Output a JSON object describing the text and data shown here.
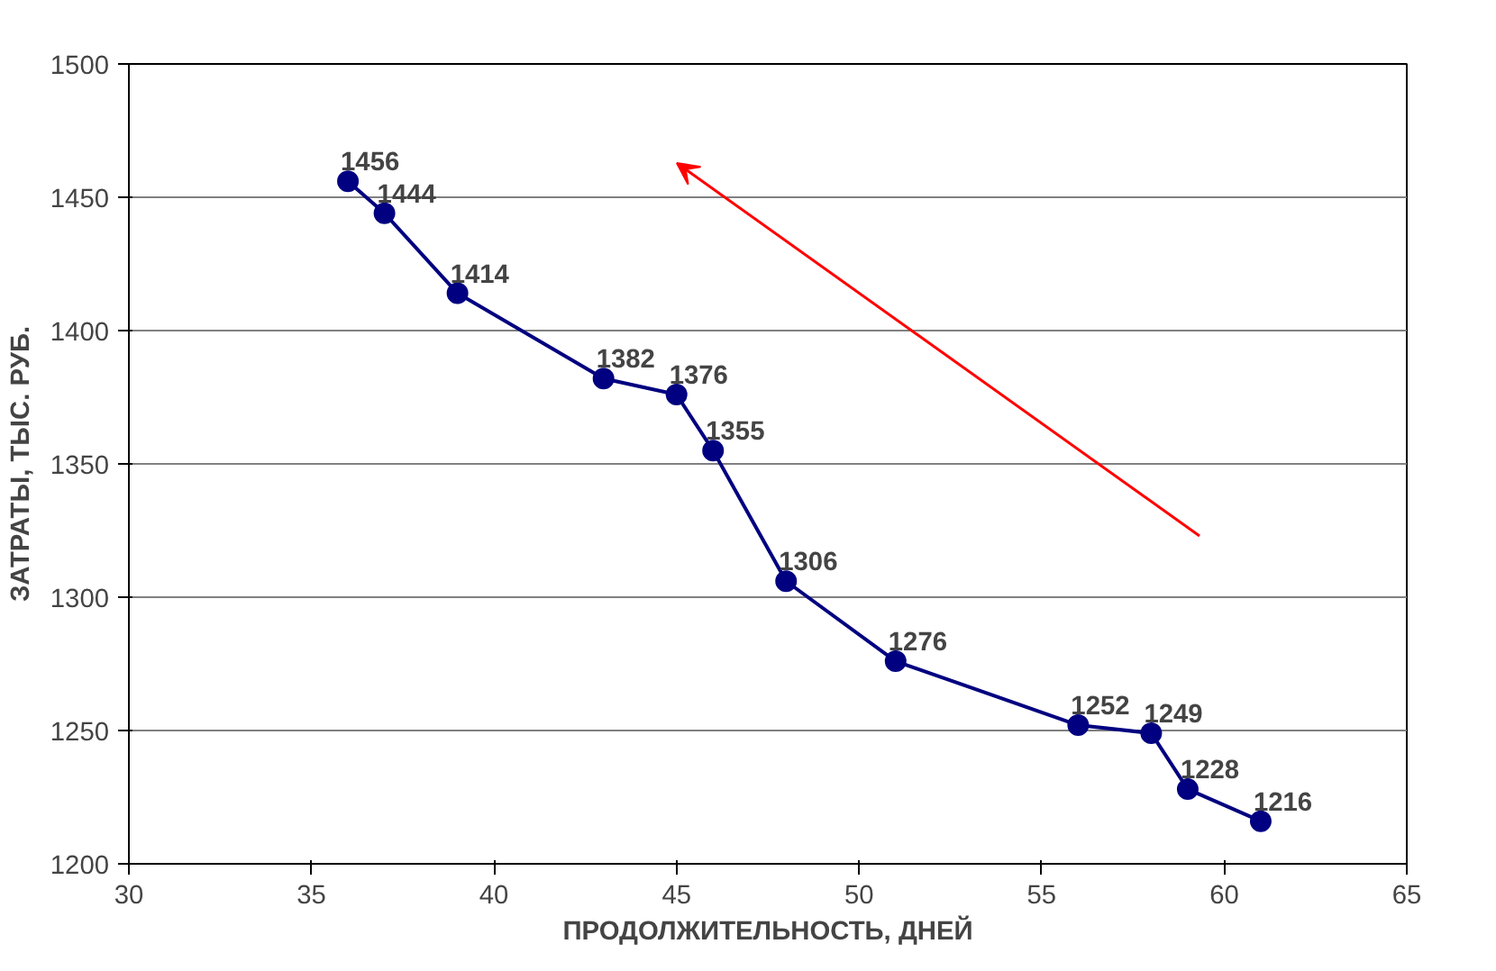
{
  "chart_data": {
    "type": "line",
    "xlabel": "ПРОДОЛЖИТЕЛЬНОСТЬ, ДНЕЙ",
    "ylabel": "ЗАТРАТЫ, ТЫС. РУБ.",
    "x": [
      36,
      37,
      39,
      43,
      45,
      46,
      48,
      51,
      56,
      58,
      59,
      61
    ],
    "series": [
      {
        "color": "#000080",
        "values": [
          1456,
          1444,
          1414,
          1382,
          1376,
          1355,
          1306,
          1276,
          1252,
          1249,
          1228,
          1216
        ]
      }
    ],
    "xlim": [
      30,
      65
    ],
    "xticks": [
      30,
      35,
      40,
      45,
      50,
      55,
      60,
      65
    ],
    "ylim": [
      1200,
      1500
    ],
    "yticks": [
      1200,
      1250,
      1300,
      1350,
      1400,
      1450,
      1500
    ],
    "grid": "y",
    "marker": "circle",
    "line_style": "solid",
    "data_labels": true
  }
}
